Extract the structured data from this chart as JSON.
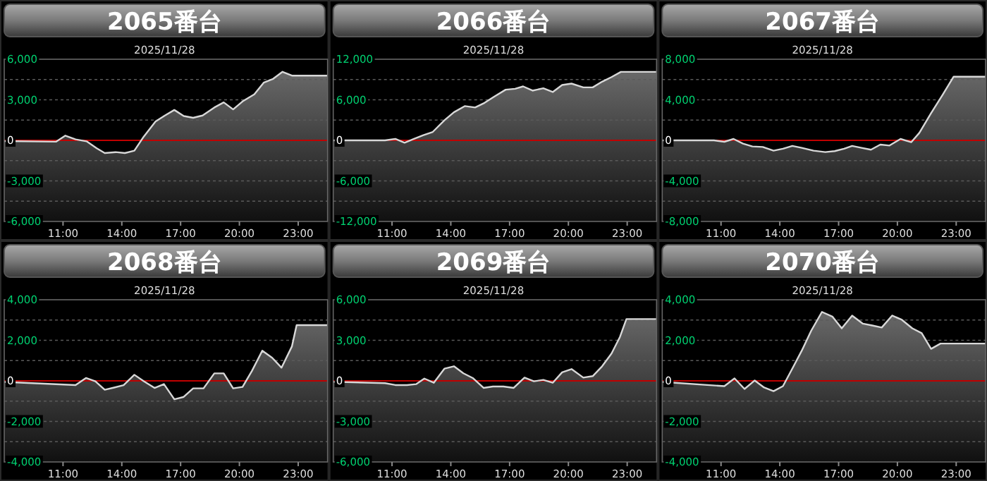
{
  "chart_data": [
    {
      "type": "area",
      "title": "2065番台",
      "subtitle": "2025/11/28",
      "xlim": [
        8,
        24.5
      ],
      "xticks": [
        {
          "value": 11,
          "label": "11:00"
        },
        {
          "value": 14,
          "label": "14:00"
        },
        {
          "value": 17,
          "label": "17:00"
        },
        {
          "value": 20,
          "label": "20:00"
        },
        {
          "value": 23,
          "label": "23:00"
        }
      ],
      "ylim": [
        -6000,
        6000
      ],
      "yticks": [
        {
          "value": 6000,
          "label": "6,000"
        },
        {
          "value": 4500,
          "label": null
        },
        {
          "value": 3000,
          "label": "3,000"
        },
        {
          "value": 1500,
          "label": null
        },
        {
          "value": 0,
          "label": "0"
        },
        {
          "value": -1500,
          "label": null
        },
        {
          "value": -3000,
          "label": "-3,000"
        },
        {
          "value": -4500,
          "label": null
        },
        {
          "value": -6000,
          "label": "-6,000"
        }
      ],
      "grid": "y",
      "ref_lines": [
        {
          "axis": "y",
          "value": 0,
          "color": "#c00000"
        }
      ],
      "series": [
        {
          "color": "#d8d8d8",
          "x": [
            8.0,
            10.64,
            11.12,
            11.64,
            12.2,
            12.72,
            13.13,
            13.68,
            14.16,
            14.64,
            15.12,
            15.72,
            16.2,
            16.68,
            17.16,
            17.64,
            18.12,
            18.72,
            19.2,
            19.68,
            20.16,
            20.76,
            21.24,
            21.72,
            22.2,
            22.68,
            24.5
          ],
          "values": [
            -50,
            -100,
            350,
            70,
            -70,
            -590,
            -940,
            -870,
            -940,
            -760,
            280,
            1390,
            1840,
            2250,
            1800,
            1670,
            1840,
            2430,
            2810,
            2290,
            2880,
            3400,
            4270,
            4550,
            5070,
            4790,
            4790
          ]
        }
      ]
    },
    {
      "type": "area",
      "title": "2066番台",
      "subtitle": "2025/11/28",
      "xlim": [
        8,
        24.5
      ],
      "xticks": [
        {
          "value": 11,
          "label": "11:00"
        },
        {
          "value": 14,
          "label": "14:00"
        },
        {
          "value": 17,
          "label": "17:00"
        },
        {
          "value": 20,
          "label": "20:00"
        },
        {
          "value": 23,
          "label": "23:00"
        }
      ],
      "ylim": [
        -12000,
        12000
      ],
      "yticks": [
        {
          "value": 12000,
          "label": "12,000"
        },
        {
          "value": 9000,
          "label": null
        },
        {
          "value": 6000,
          "label": "6,000"
        },
        {
          "value": 3000,
          "label": null
        },
        {
          "value": 0,
          "label": "0"
        },
        {
          "value": -3000,
          "label": null
        },
        {
          "value": -6000,
          "label": "-6,000"
        },
        {
          "value": -9000,
          "label": null
        },
        {
          "value": -12000,
          "label": "-12,000"
        }
      ],
      "grid": "y",
      "ref_lines": [
        {
          "axis": "y",
          "value": 0,
          "color": "#c00000"
        }
      ],
      "series": [
        {
          "color": "#d8d8d8",
          "x": [
            8.0,
            10.64,
            11.17,
            11.64,
            12.12,
            12.6,
            13.08,
            13.68,
            14.16,
            14.71,
            15.24,
            15.72,
            16.2,
            16.8,
            17.28,
            17.69,
            18.17,
            18.72,
            19.2,
            19.68,
            20.16,
            20.76,
            21.24,
            21.72,
            22.2,
            22.68,
            24.5
          ],
          "values": [
            0,
            0,
            210,
            -350,
            210,
            760,
            1250,
            2980,
            4160,
            5070,
            4860,
            5550,
            6450,
            7500,
            7630,
            7980,
            7360,
            7700,
            7150,
            8190,
            8400,
            7840,
            7840,
            8680,
            9370,
            10130,
            10130
          ]
        }
      ]
    },
    {
      "type": "area",
      "title": "2067番台",
      "subtitle": "2025/11/28",
      "xlim": [
        8,
        24.5
      ],
      "xticks": [
        {
          "value": 11,
          "label": "11:00"
        },
        {
          "value": 14,
          "label": "14:00"
        },
        {
          "value": 17,
          "label": "17:00"
        },
        {
          "value": 20,
          "label": "20:00"
        },
        {
          "value": 23,
          "label": "23:00"
        }
      ],
      "ylim": [
        -8000,
        8000
      ],
      "yticks": [
        {
          "value": 8000,
          "label": "8,000"
        },
        {
          "value": 6000,
          "label": null
        },
        {
          "value": 4000,
          "label": "4,000"
        },
        {
          "value": 2000,
          "label": null
        },
        {
          "value": 0,
          "label": "0"
        },
        {
          "value": -2000,
          "label": null
        },
        {
          "value": -4000,
          "label": "-4,000"
        },
        {
          "value": -6000,
          "label": null
        },
        {
          "value": -8000,
          "label": "-8,000"
        }
      ],
      "grid": "y",
      "ref_lines": [
        {
          "axis": "y",
          "value": 0,
          "color": "#c00000"
        }
      ],
      "series": [
        {
          "color": "#d8d8d8",
          "x": [
            8.0,
            10.64,
            11.17,
            11.64,
            12.12,
            12.6,
            13.13,
            13.68,
            14.16,
            14.64,
            15.12,
            15.72,
            16.32,
            16.8,
            17.28,
            17.69,
            18.17,
            18.65,
            19.13,
            19.6,
            20.16,
            20.71,
            21.12,
            21.72,
            22.32,
            22.87,
            24.5
          ],
          "values": [
            0,
            0,
            -140,
            140,
            -320,
            -600,
            -650,
            -1020,
            -830,
            -550,
            -740,
            -1020,
            -1160,
            -1060,
            -830,
            -550,
            -740,
            -920,
            -420,
            -510,
            140,
            -180,
            740,
            2680,
            4530,
            6280,
            6280
          ]
        }
      ]
    },
    {
      "type": "area",
      "title": "2068番台",
      "subtitle": "2025/11/28",
      "xlim": [
        8,
        24.5
      ],
      "xticks": [
        {
          "value": 11,
          "label": "11:00"
        },
        {
          "value": 14,
          "label": "14:00"
        },
        {
          "value": 17,
          "label": "17:00"
        },
        {
          "value": 20,
          "label": "20:00"
        },
        {
          "value": 23,
          "label": "23:00"
        }
      ],
      "ylim": [
        -4000,
        4000
      ],
      "yticks": [
        {
          "value": 4000,
          "label": "4,000"
        },
        {
          "value": 3000,
          "label": null
        },
        {
          "value": 2000,
          "label": "2,000"
        },
        {
          "value": 1000,
          "label": null
        },
        0,
        {
          "value": -1000,
          "label": null
        },
        {
          "value": -2000,
          "label": "-2,000"
        },
        {
          "value": -3000,
          "label": null
        },
        {
          "value": -4000,
          "label": "-4,000"
        }
      ],
      "grid": "y",
      "ref_lines": [
        {
          "axis": "y",
          "value": 0,
          "color": "#c00000"
        }
      ],
      "series": [
        {
          "color": "#d8d8d8",
          "x": [
            8.0,
            11.64,
            12.17,
            12.65,
            13.13,
            13.61,
            14.09,
            14.64,
            15.12,
            15.67,
            16.15,
            16.68,
            17.16,
            17.64,
            18.17,
            18.72,
            19.2,
            19.68,
            20.16,
            20.64,
            21.17,
            21.67,
            22.15,
            22.68,
            22.92,
            24.5
          ],
          "values": [
            -50,
            -210,
            140,
            -20,
            -440,
            -330,
            -210,
            300,
            -20,
            -350,
            -160,
            -910,
            -790,
            -370,
            -370,
            370,
            370,
            -370,
            -300,
            490,
            1490,
            1140,
            650,
            1700,
            2750,
            2750
          ]
        }
      ]
    },
    {
      "type": "area",
      "title": "2069番台",
      "subtitle": "2025/11/28",
      "xlim": [
        8,
        24.5
      ],
      "xticks": [
        {
          "value": 11,
          "label": "11:00"
        },
        {
          "value": 14,
          "label": "14:00"
        },
        {
          "value": 17,
          "label": "17:00"
        },
        {
          "value": 20,
          "label": "20:00"
        },
        {
          "value": 23,
          "label": "23:00"
        }
      ],
      "ylim": [
        -6000,
        6000
      ],
      "yticks": [
        {
          "value": 6000,
          "label": "6,000"
        },
        {
          "value": 4500,
          "label": null
        },
        {
          "value": 3000,
          "label": "3,000"
        },
        {
          "value": 1500,
          "label": null
        },
        {
          "value": 0,
          "label": "0"
        },
        {
          "value": -1500,
          "label": null
        },
        {
          "value": -3000,
          "label": "-3,000"
        },
        {
          "value": -4500,
          "label": null
        },
        {
          "value": -6000,
          "label": "-6,000"
        }
      ],
      "grid": "y",
      "ref_lines": [
        {
          "axis": "y",
          "value": 0,
          "color": "#c00000"
        }
      ],
      "series": [
        {
          "color": "#d8d8d8",
          "x": [
            8.0,
            10.64,
            11.17,
            11.76,
            12.24,
            12.65,
            13.13,
            13.68,
            14.16,
            14.64,
            15.12,
            15.67,
            16.15,
            16.68,
            17.21,
            17.76,
            18.24,
            18.72,
            19.2,
            19.68,
            20.16,
            20.76,
            21.24,
            21.72,
            22.2,
            22.63,
            22.96,
            24.5
          ],
          "values": [
            -70,
            -170,
            -310,
            -310,
            -240,
            170,
            -140,
            910,
            1080,
            560,
            210,
            -520,
            -420,
            -420,
            -520,
            240,
            -30,
            70,
            -140,
            630,
            870,
            240,
            350,
            1080,
            2020,
            3250,
            4570,
            4570
          ]
        }
      ]
    },
    {
      "type": "area",
      "title": "2070番台",
      "subtitle": "2025/11/28",
      "xlim": [
        8,
        24.5
      ],
      "xticks": [
        {
          "value": 11,
          "label": "11:00"
        },
        {
          "value": 14,
          "label": "14:00"
        },
        {
          "value": 17,
          "label": "17:00"
        },
        {
          "value": 20,
          "label": "20:00"
        },
        {
          "value": 23,
          "label": "23:00"
        }
      ],
      "ylim": [
        -4000,
        4000
      ],
      "yticks": [
        {
          "value": 4000,
          "label": "4,000"
        },
        {
          "value": 3000,
          "label": null
        },
        {
          "value": 2000,
          "label": "2,000"
        },
        {
          "value": 1000,
          "label": null
        },
        0,
        {
          "value": -1000,
          "label": null
        },
        {
          "value": -2000,
          "label": "-2,000"
        },
        {
          "value": -3000,
          "label": null
        },
        {
          "value": -4000,
          "label": "-4,000"
        }
      ],
      "grid": "y",
      "ref_lines": [
        {
          "axis": "y",
          "value": 0,
          "color": "#c00000"
        }
      ],
      "series": [
        {
          "color": "#d8d8d8",
          "x": [
            8.0,
            11.17,
            11.69,
            12.2,
            12.72,
            13.2,
            13.68,
            14.16,
            14.64,
            15.12,
            15.6,
            16.15,
            16.68,
            17.16,
            17.69,
            18.24,
            18.72,
            19.2,
            19.73,
            20.23,
            20.76,
            21.24,
            21.72,
            22.2,
            24.5
          ],
          "values": [
            -50,
            -260,
            120,
            -400,
            20,
            -330,
            -510,
            -260,
            610,
            1490,
            2470,
            3400,
            3170,
            2590,
            3220,
            2820,
            2730,
            2630,
            3220,
            3010,
            2590,
            2350,
            1580,
            1840,
            1840
          ]
        }
      ]
    }
  ]
}
